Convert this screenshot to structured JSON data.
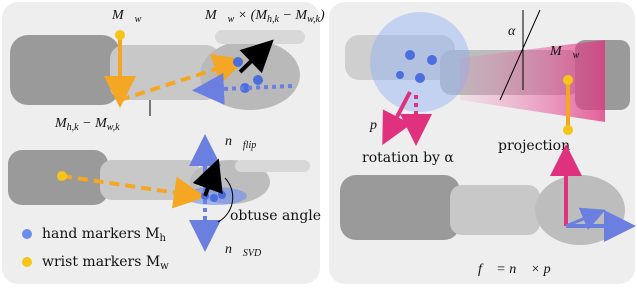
{
  "left_panel": {
    "wrist_vector": [
      "M⃗",
      "w"
    ],
    "cross_product": [
      "M⃗",
      "w",
      " × (M",
      "h,k",
      " − M",
      "w,k",
      ")"
    ],
    "difference": [
      "M",
      "h,k",
      " − M",
      "w,k"
    ],
    "n_flip": [
      "n⃗",
      "flip"
    ],
    "n_svd": [
      "n⃗",
      "SVD"
    ],
    "obtuse_angle": "obtuse angle",
    "legend": [
      {
        "text": [
          "hand markers M",
          "h"
        ]
      },
      {
        "text": [
          "wrist markers M",
          "w"
        ]
      }
    ]
  },
  "right_panel": {
    "alpha": "α",
    "wrist_vector": [
      "M⃗",
      "w"
    ],
    "p": "p⃗",
    "rotation": "rotation by α",
    "projection": "projection",
    "formula": "f⃗ = n⃗ × p⃗"
  }
}
